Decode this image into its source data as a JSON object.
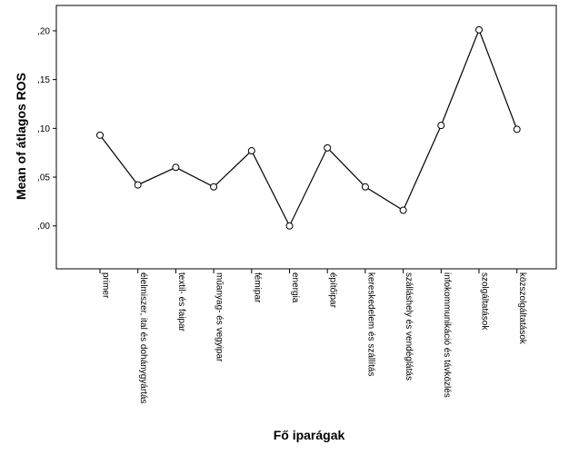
{
  "chart_data": {
    "type": "line",
    "title": "",
    "xlabel": "Fő iparágak",
    "ylabel": "Mean of átlagos ROS",
    "ylim": [
      -0.044,
      0.226
    ],
    "yticks": [
      0.0,
      0.05,
      0.1,
      0.15,
      0.2
    ],
    "ytick_labels": [
      ",00",
      ",05",
      ",10",
      ",15",
      ",20"
    ],
    "grid": false,
    "categories": [
      "primer",
      "élelmiszer, ital és dohánygyártás",
      "textil- és faipar",
      "műanyag- és vegyipar",
      "fémipar",
      "energia",
      "építőipar",
      "kereskedelem és szállítás",
      "szálláshely és vendéglátás",
      "infokommunikáció és távközlés",
      "szolgáltatások",
      "közszolgáltatások"
    ],
    "values": [
      0.093,
      0.042,
      0.06,
      0.04,
      0.077,
      0.0,
      0.08,
      0.04,
      0.016,
      0.103,
      0.201,
      0.099
    ],
    "line_color": "#000000",
    "marker": "open-circle"
  }
}
